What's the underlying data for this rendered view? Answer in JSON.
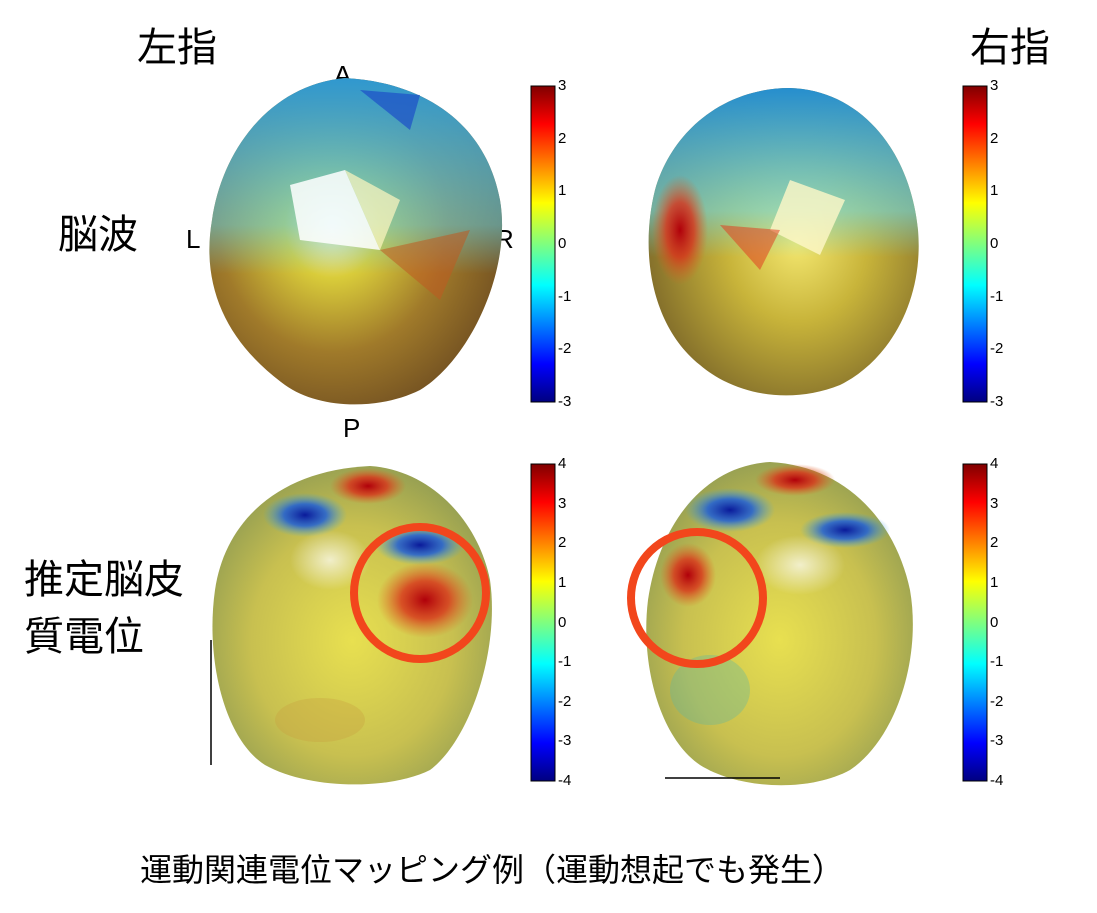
{
  "columns": {
    "left": "左指",
    "right": "右指"
  },
  "rows": {
    "eeg": "脳波",
    "cortex_line1": "推定脳皮",
    "cortex_line2": "質電位"
  },
  "orientation": {
    "anterior": "A",
    "posterior": "P",
    "left": "L",
    "right": "R"
  },
  "colorbar_top": {
    "ticks": [
      "3",
      "2",
      "1",
      "0",
      "-1",
      "-2",
      "-3"
    ],
    "min": -3,
    "max": 3
  },
  "colorbar_bottom": {
    "ticks": [
      "4",
      "3",
      "2",
      "1",
      "0",
      "-1",
      "-2",
      "-3",
      "-4"
    ],
    "min": -4,
    "max": 4
  },
  "highlight_color": "#f2461c",
  "caption": "運動関連電位マッピング例（運動想起でも発生）"
}
